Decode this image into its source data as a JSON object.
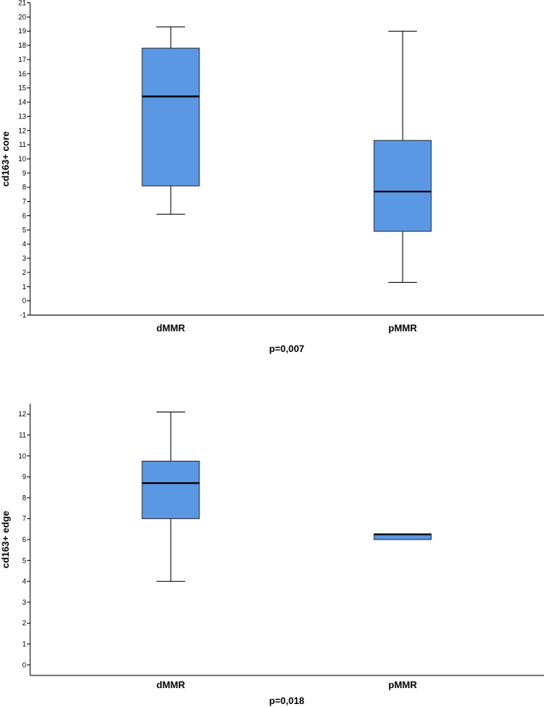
{
  "chart_data": [
    {
      "type": "boxplot",
      "ylabel": "cd163+ core",
      "caption": "p=0,007",
      "ylim": [
        -1,
        21
      ],
      "yticks": [
        -1,
        0,
        1,
        2,
        3,
        4,
        5,
        6,
        7,
        8,
        9,
        10,
        11,
        12,
        13,
        14,
        15,
        16,
        17,
        18,
        19,
        20,
        21
      ],
      "categories": [
        "dMMR",
        "pMMR"
      ],
      "boxes": [
        {
          "category": "dMMR",
          "min": 6.1,
          "q1": 8.1,
          "median": 14.4,
          "q3": 17.8,
          "max": 19.3
        },
        {
          "category": "pMMR",
          "min": 1.3,
          "q1": 4.9,
          "median": 7.7,
          "q3": 11.3,
          "max": 19.0
        }
      ],
      "box_color": "#5b98e4",
      "grid": false
    },
    {
      "type": "boxplot",
      "ylabel": "cd163+ edge",
      "caption": "p=0,018",
      "ylim": [
        -0.5,
        12.5
      ],
      "yticks": [
        0,
        1,
        2,
        3,
        4,
        5,
        6,
        7,
        8,
        9,
        10,
        11,
        12
      ],
      "categories": [
        "dMMR",
        "pMMR"
      ],
      "boxes": [
        {
          "category": "dMMR",
          "min": 4.0,
          "q1": 7.0,
          "median": 8.7,
          "q3": 9.75,
          "max": 12.1
        },
        {
          "category": "pMMR",
          "min": 6.0,
          "q1": 6.0,
          "median": 6.25,
          "q3": 6.25,
          "max": 6.25
        }
      ],
      "box_color": "#5b98e4",
      "grid": false
    }
  ]
}
